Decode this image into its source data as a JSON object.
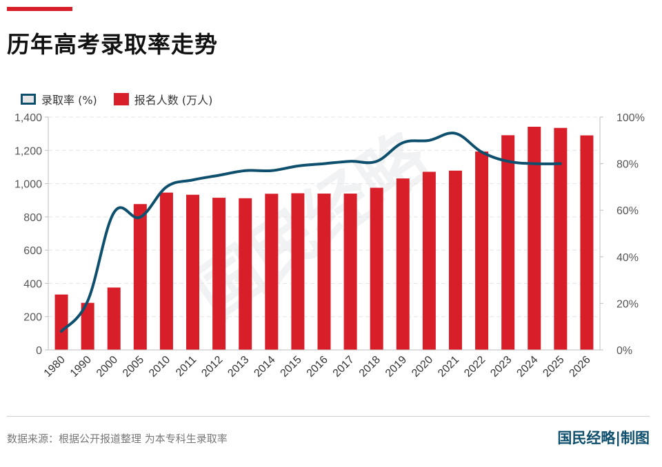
{
  "header": {
    "title": "历年高考录取率走势"
  },
  "legend": {
    "line_label": "录取率 (%)",
    "bar_label": "报名人数 (万人)"
  },
  "footer": {
    "source": "数据来源：根据公开报道整理 为本专科生录取率",
    "brand": "国民经略|制图"
  },
  "colors": {
    "accent": "#d81e28",
    "bar": "#d81e28",
    "line": "#0d4f6c"
  },
  "chart_data": {
    "type": "bar",
    "title": "历年高考录取率走势",
    "categories": [
      "1980",
      "1990",
      "2000",
      "2005",
      "2010",
      "2011",
      "2012",
      "2013",
      "2014",
      "2015",
      "2016",
      "2017",
      "2018",
      "2019",
      "2020",
      "2021",
      "2022",
      "2023",
      "2024",
      "2025",
      "2026"
    ],
    "series": [
      {
        "name": "报名人数 (万人)",
        "type": "bar",
        "axis": "left",
        "values": [
          333,
          283,
          375,
          877,
          946,
          933,
          915,
          912,
          939,
          942,
          940,
          940,
          975,
          1031,
          1071,
          1078,
          1193,
          1291,
          1342,
          1335,
          1290
        ]
      },
      {
        "name": "录取率 (%)",
        "type": "line",
        "axis": "right",
        "values": [
          8,
          21,
          59,
          57,
          70,
          73,
          75,
          77,
          77,
          79,
          80,
          81,
          81,
          89,
          90,
          93,
          85,
          81,
          80,
          80,
          null
        ]
      }
    ],
    "y_left": {
      "min": 0,
      "max": 1400,
      "ticks": [
        0,
        200,
        400,
        600,
        800,
        1000,
        1200,
        1400
      ],
      "tick_labels": [
        "0",
        "200",
        "400",
        "600",
        "800",
        "1,000",
        "1,200",
        "1,400"
      ]
    },
    "y_right": {
      "min": 0,
      "max": 100,
      "ticks": [
        0,
        20,
        40,
        60,
        80,
        100
      ],
      "tick_labels": [
        "0%",
        "20%",
        "40%",
        "60%",
        "80%",
        "100%"
      ]
    },
    "grid": true,
    "legend_position": "top-left",
    "watermark": "国民经略"
  }
}
